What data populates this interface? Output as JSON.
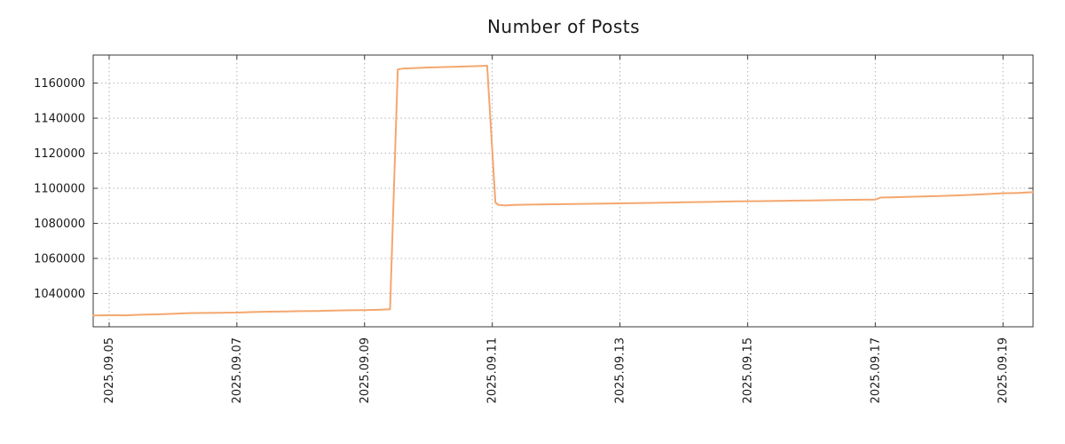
{
  "chart_data": {
    "type": "line",
    "title": "Number of Posts",
    "xlabel": "",
    "ylabel": "",
    "xlim": [
      4.75,
      19.47
    ],
    "ylim": [
      1021000,
      1176000
    ],
    "grid": "dotted",
    "legend": "none",
    "line_color": "#f4a76f",
    "axis_color": "#3a3a3a",
    "grid_color": "#b3b3b3",
    "text_color": "#1a1a1a",
    "background": "#ffffff",
    "x_ticks": [
      {
        "value": 5,
        "label": "2025.09.05"
      },
      {
        "value": 7,
        "label": "2025.09.07"
      },
      {
        "value": 9,
        "label": "2025.09.09"
      },
      {
        "value": 11,
        "label": "2025.09.11"
      },
      {
        "value": 13,
        "label": "2025.09.13"
      },
      {
        "value": 15,
        "label": "2025.09.15"
      },
      {
        "value": 17,
        "label": "2025.09.17"
      },
      {
        "value": 19,
        "label": "2025.09.19"
      }
    ],
    "y_ticks": [
      {
        "value": 1040000,
        "label": "1040000"
      },
      {
        "value": 1060000,
        "label": "1060000"
      },
      {
        "value": 1080000,
        "label": "1080000"
      },
      {
        "value": 1100000,
        "label": "1100000"
      },
      {
        "value": 1120000,
        "label": "1120000"
      },
      {
        "value": 1140000,
        "label": "1140000"
      },
      {
        "value": 1160000,
        "label": "1160000"
      }
    ],
    "series": [
      {
        "name": "Number of Posts",
        "points": [
          [
            4.75,
            1027500
          ],
          [
            5.0,
            1027600
          ],
          [
            5.25,
            1027550
          ],
          [
            5.5,
            1027900
          ],
          [
            5.75,
            1028100
          ],
          [
            6.0,
            1028400
          ],
          [
            6.25,
            1028800
          ],
          [
            6.5,
            1028900
          ],
          [
            6.75,
            1029000
          ],
          [
            7.0,
            1029100
          ],
          [
            7.25,
            1029400
          ],
          [
            7.5,
            1029600
          ],
          [
            7.75,
            1029700
          ],
          [
            8.0,
            1029900
          ],
          [
            8.25,
            1030000
          ],
          [
            8.5,
            1030200
          ],
          [
            8.75,
            1030400
          ],
          [
            9.0,
            1030500
          ],
          [
            9.2,
            1030700
          ],
          [
            9.4,
            1031000
          ],
          [
            9.52,
            1167800
          ],
          [
            9.6,
            1168300
          ],
          [
            9.8,
            1168600
          ],
          [
            10.0,
            1168900
          ],
          [
            10.2,
            1169100
          ],
          [
            10.4,
            1169300
          ],
          [
            10.6,
            1169500
          ],
          [
            10.8,
            1169700
          ],
          [
            10.92,
            1169900
          ],
          [
            11.05,
            1091800
          ],
          [
            11.1,
            1090500
          ],
          [
            11.2,
            1090200
          ],
          [
            11.35,
            1090500
          ],
          [
            11.6,
            1090700
          ],
          [
            12.0,
            1090900
          ],
          [
            12.4,
            1091100
          ],
          [
            12.8,
            1091300
          ],
          [
            13.2,
            1091500
          ],
          [
            13.6,
            1091700
          ],
          [
            14.0,
            1092000
          ],
          [
            14.4,
            1092200
          ],
          [
            14.8,
            1092500
          ],
          [
            15.2,
            1092700
          ],
          [
            15.6,
            1092900
          ],
          [
            16.0,
            1093100
          ],
          [
            16.4,
            1093300
          ],
          [
            16.8,
            1093500
          ],
          [
            17.0,
            1093600
          ],
          [
            17.08,
            1094700
          ],
          [
            17.3,
            1094900
          ],
          [
            17.6,
            1095200
          ],
          [
            18.0,
            1095600
          ],
          [
            18.4,
            1096100
          ],
          [
            18.8,
            1096800
          ],
          [
            19.0,
            1097200
          ],
          [
            19.2,
            1097300
          ],
          [
            19.47,
            1097800
          ]
        ]
      }
    ]
  }
}
